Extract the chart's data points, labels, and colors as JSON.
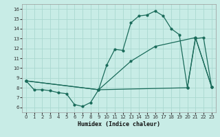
{
  "title": "",
  "xlabel": "Humidex (Indice chaleur)",
  "bg_color": "#c8ece6",
  "grid_color": "#aad8d0",
  "line_color": "#1a6b5a",
  "xlim": [
    -0.5,
    23.5
  ],
  "ylim": [
    5.5,
    16.5
  ],
  "xticks": [
    0,
    1,
    2,
    3,
    4,
    5,
    6,
    7,
    8,
    9,
    10,
    11,
    12,
    13,
    14,
    15,
    16,
    17,
    18,
    19,
    20,
    21,
    22,
    23
  ],
  "yticks": [
    6,
    7,
    8,
    9,
    10,
    11,
    12,
    13,
    14,
    15,
    16
  ],
  "line1_x": [
    0,
    1,
    2,
    3,
    4,
    5,
    6,
    7,
    8,
    9,
    10,
    11,
    12,
    13,
    14,
    15,
    16,
    17,
    18,
    19,
    20,
    21,
    22,
    23
  ],
  "line1_y": [
    8.7,
    7.8,
    7.8,
    7.7,
    7.5,
    7.4,
    6.3,
    6.1,
    6.5,
    7.8,
    10.3,
    11.9,
    11.8,
    14.6,
    15.3,
    15.4,
    15.8,
    15.3,
    14.0,
    13.4,
    8.0,
    13.0,
    13.1,
    8.1
  ],
  "line2_x": [
    0,
    9,
    13,
    16,
    21,
    23
  ],
  "line2_y": [
    8.7,
    7.8,
    10.7,
    12.2,
    13.1,
    8.1
  ],
  "line3_x": [
    0,
    9,
    20,
    21,
    23
  ],
  "line3_y": [
    8.7,
    7.8,
    8.0,
    13.1,
    8.1
  ]
}
